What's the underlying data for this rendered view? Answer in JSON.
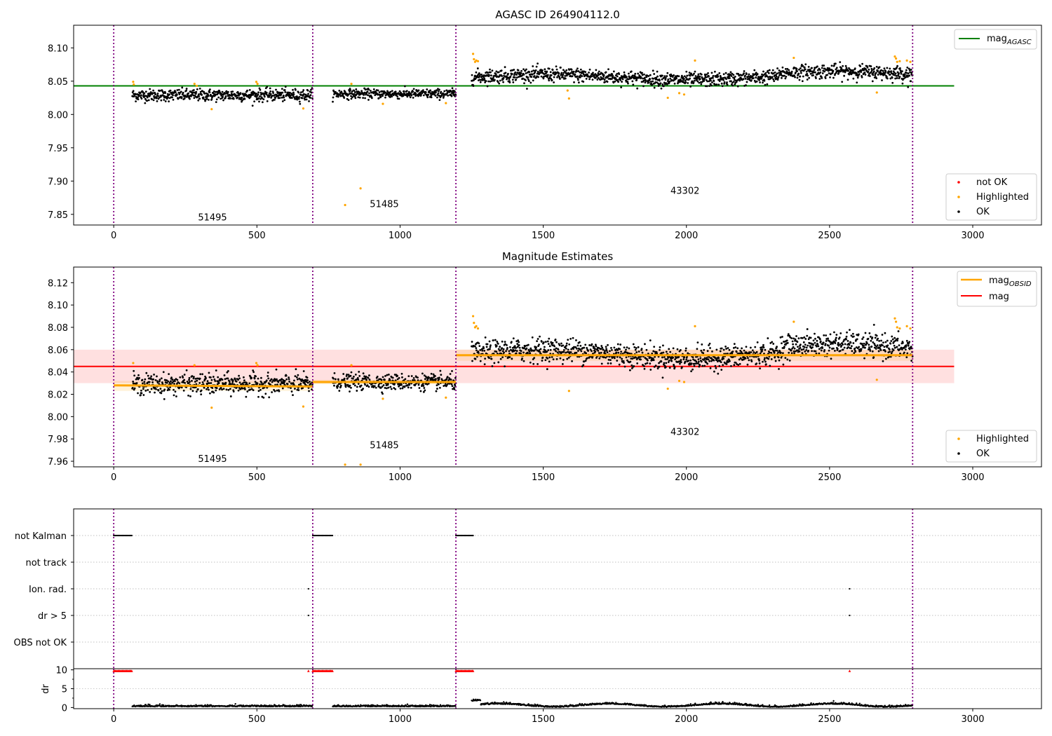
{
  "chart_data": [
    {
      "type": "scatter",
      "title": "AGASC ID 264904112.0",
      "xlim": [
        -140,
        3240
      ],
      "ylim": [
        7.834,
        8.134
      ],
      "x_ticks": [
        0,
        500,
        1000,
        1500,
        2000,
        2500,
        3000
      ],
      "y_ticks": [
        7.85,
        7.9,
        7.95,
        8.0,
        8.05,
        8.1
      ],
      "grid": false,
      "obsid_boundaries": [
        0,
        695,
        1195,
        2790
      ],
      "obsid_labels": [
        {
          "text": "51495",
          "x": 345,
          "y": 7.845
        },
        {
          "text": "51485",
          "x": 945,
          "y": 7.865
        },
        {
          "text": "43302",
          "x": 1995,
          "y": 7.885
        }
      ],
      "mag_agasc": {
        "value": 8.043,
        "x_range": [
          -140,
          2935
        ],
        "color": "#008000"
      },
      "segments": [
        {
          "x_range": [
            65,
            695
          ],
          "mean": 8.029,
          "sigma": 0.0065,
          "drift": 0.0
        },
        {
          "x_range": [
            765,
            1195
          ],
          "mean": 8.031,
          "sigma": 0.005,
          "drift": 0.0
        },
        {
          "x_range": [
            1250,
            2790
          ],
          "mean": 8.056,
          "sigma": 0.0075,
          "drift": 0.008
        }
      ],
      "highlighted_points": [
        [
          68,
          8.049
        ],
        [
          70,
          8.045
        ],
        [
          282,
          8.046
        ],
        [
          290,
          8.043
        ],
        [
          342,
          8.008
        ],
        [
          498,
          8.049
        ],
        [
          502,
          8.046
        ],
        [
          662,
          8.009
        ],
        [
          808,
          7.864
        ],
        [
          862,
          7.889
        ],
        [
          830,
          8.046
        ],
        [
          940,
          8.016
        ],
        [
          1160,
          8.017
        ],
        [
          1255,
          8.091
        ],
        [
          1258,
          8.083
        ],
        [
          1262,
          8.079
        ],
        [
          1266,
          8.081
        ],
        [
          1272,
          8.08
        ],
        [
          1590,
          8.024
        ],
        [
          1585,
          8.036
        ],
        [
          1935,
          8.025
        ],
        [
          1975,
          8.032
        ],
        [
          1992,
          8.03
        ],
        [
          2030,
          8.081
        ],
        [
          2375,
          8.085
        ],
        [
          2665,
          8.033
        ],
        [
          2728,
          8.087
        ],
        [
          2732,
          8.084
        ],
        [
          2736,
          8.079
        ],
        [
          2745,
          8.08
        ],
        [
          2770,
          8.081
        ],
        [
          2782,
          8.079
        ]
      ],
      "legend_top": [
        {
          "label": "mag",
          "subscript": "AGASC",
          "color": "#008000"
        }
      ],
      "legend_bottom": [
        {
          "label": "not OK",
          "color": "#ff0000"
        },
        {
          "label": "Highlighted",
          "color": "#ffa500"
        },
        {
          "label": "OK",
          "color": "#000000"
        }
      ]
    },
    {
      "type": "scatter",
      "title": "Magnitude Estimates",
      "xlim": [
        -140,
        3240
      ],
      "ylim": [
        7.955,
        8.134
      ],
      "x_ticks": [
        0,
        500,
        1000,
        1500,
        2000,
        2500,
        3000
      ],
      "y_ticks": [
        7.96,
        7.98,
        8.0,
        8.02,
        8.04,
        8.06,
        8.08,
        8.1,
        8.12
      ],
      "grid": false,
      "obsid_boundaries": [
        0,
        695,
        1195,
        2790
      ],
      "obsid_labels": [
        {
          "text": "51495",
          "x": 345,
          "y": 7.962
        },
        {
          "text": "51485",
          "x": 945,
          "y": 7.974
        },
        {
          "text": "43302",
          "x": 1995,
          "y": 7.986
        }
      ],
      "mag": {
        "value": 8.045,
        "band": [
          8.03,
          8.06
        ],
        "x_range": [
          -140,
          2935
        ],
        "color": "#ff0000"
      },
      "mag_obsid": [
        {
          "x_range": [
            0,
            695
          ],
          "y": [
            8.028,
            8.027
          ],
          "band": 0.004
        },
        {
          "x_range": [
            695,
            1195
          ],
          "y": [
            8.031,
            8.031
          ],
          "band": 0.002
        },
        {
          "x_range": [
            1195,
            2790
          ],
          "y": [
            8.055,
            8.055
          ],
          "band": 0.005
        }
      ],
      "segments": [
        {
          "x_range": [
            65,
            695
          ],
          "mean": 8.029,
          "sigma": 0.0065,
          "drift": 0.0
        },
        {
          "x_range": [
            765,
            1195
          ],
          "mean": 8.031,
          "sigma": 0.005,
          "drift": 0.0
        },
        {
          "x_range": [
            1250,
            2790
          ],
          "mean": 8.056,
          "sigma": 0.0075,
          "drift": 0.008
        }
      ],
      "highlighted_points": [
        [
          68,
          8.048
        ],
        [
          282,
          8.046
        ],
        [
          342,
          8.008
        ],
        [
          498,
          8.048
        ],
        [
          502,
          8.046
        ],
        [
          662,
          8.009
        ],
        [
          808,
          7.957
        ],
        [
          862,
          7.957
        ],
        [
          830,
          8.046
        ],
        [
          940,
          8.016
        ],
        [
          1160,
          8.017
        ],
        [
          1255,
          8.09
        ],
        [
          1258,
          8.084
        ],
        [
          1262,
          8.08
        ],
        [
          1266,
          8.081
        ],
        [
          1272,
          8.079
        ],
        [
          1590,
          8.023
        ],
        [
          1935,
          8.025
        ],
        [
          1975,
          8.032
        ],
        [
          1992,
          8.031
        ],
        [
          2030,
          8.081
        ],
        [
          2375,
          8.085
        ],
        [
          2665,
          8.033
        ],
        [
          2728,
          8.088
        ],
        [
          2732,
          8.085
        ],
        [
          2736,
          8.08
        ],
        [
          2745,
          8.079
        ],
        [
          2770,
          8.081
        ],
        [
          2782,
          8.079
        ]
      ],
      "legend_top": [
        {
          "label": "mag",
          "subscript": "OBSID",
          "color": "#ffa500"
        },
        {
          "label": "mag",
          "subscript": "",
          "color": "#ff0000"
        }
      ],
      "legend_bottom": [
        {
          "label": "Highlighted",
          "color": "#ffa500"
        },
        {
          "label": "OK",
          "color": "#000000"
        }
      ]
    },
    {
      "type": "scatter",
      "title": "",
      "xlim": [
        -140,
        3240
      ],
      "categories": [
        "not Kalman",
        "not track",
        "Ion. rad.",
        "dr > 5",
        "OBS not OK"
      ],
      "flag_points": {
        "not Kalman": [
          [
            0,
            65
          ],
          [
            695,
            765
          ],
          [
            1195,
            1255
          ]
        ],
        "not track": [],
        "Ion. rad.": [
          [
            680,
            680
          ],
          [
            2570,
            2570
          ]
        ],
        "dr > 5": [
          [
            680,
            680
          ],
          [
            2570,
            2570
          ]
        ],
        "OBS not OK": []
      },
      "obsid_boundaries": [
        0,
        695,
        1195,
        2790
      ]
    },
    {
      "type": "scatter",
      "title": "",
      "xlim": [
        -140,
        3240
      ],
      "ylim": [
        -0.3,
        10.3
      ],
      "ylabel": "dr",
      "y_ticks": [
        0,
        5,
        10
      ],
      "x_ticks": [
        0,
        500,
        1000,
        1500,
        2000,
        2500,
        3000
      ],
      "clipped_markers": [
        [
          0,
          65
        ],
        [
          695,
          765
        ],
        [
          1195,
          1255
        ],
        [
          680,
          680
        ],
        [
          2570,
          2570
        ]
      ],
      "segments": [
        {
          "x_range": [
            65,
            695
          ],
          "base": 0.25
        },
        {
          "x_range": [
            765,
            1195
          ],
          "base": 0.25
        },
        {
          "x_range": [
            1250,
            2790
          ],
          "base": 0.8
        }
      ],
      "obsid_boundaries": [
        0,
        695,
        1195,
        2790
      ]
    }
  ]
}
